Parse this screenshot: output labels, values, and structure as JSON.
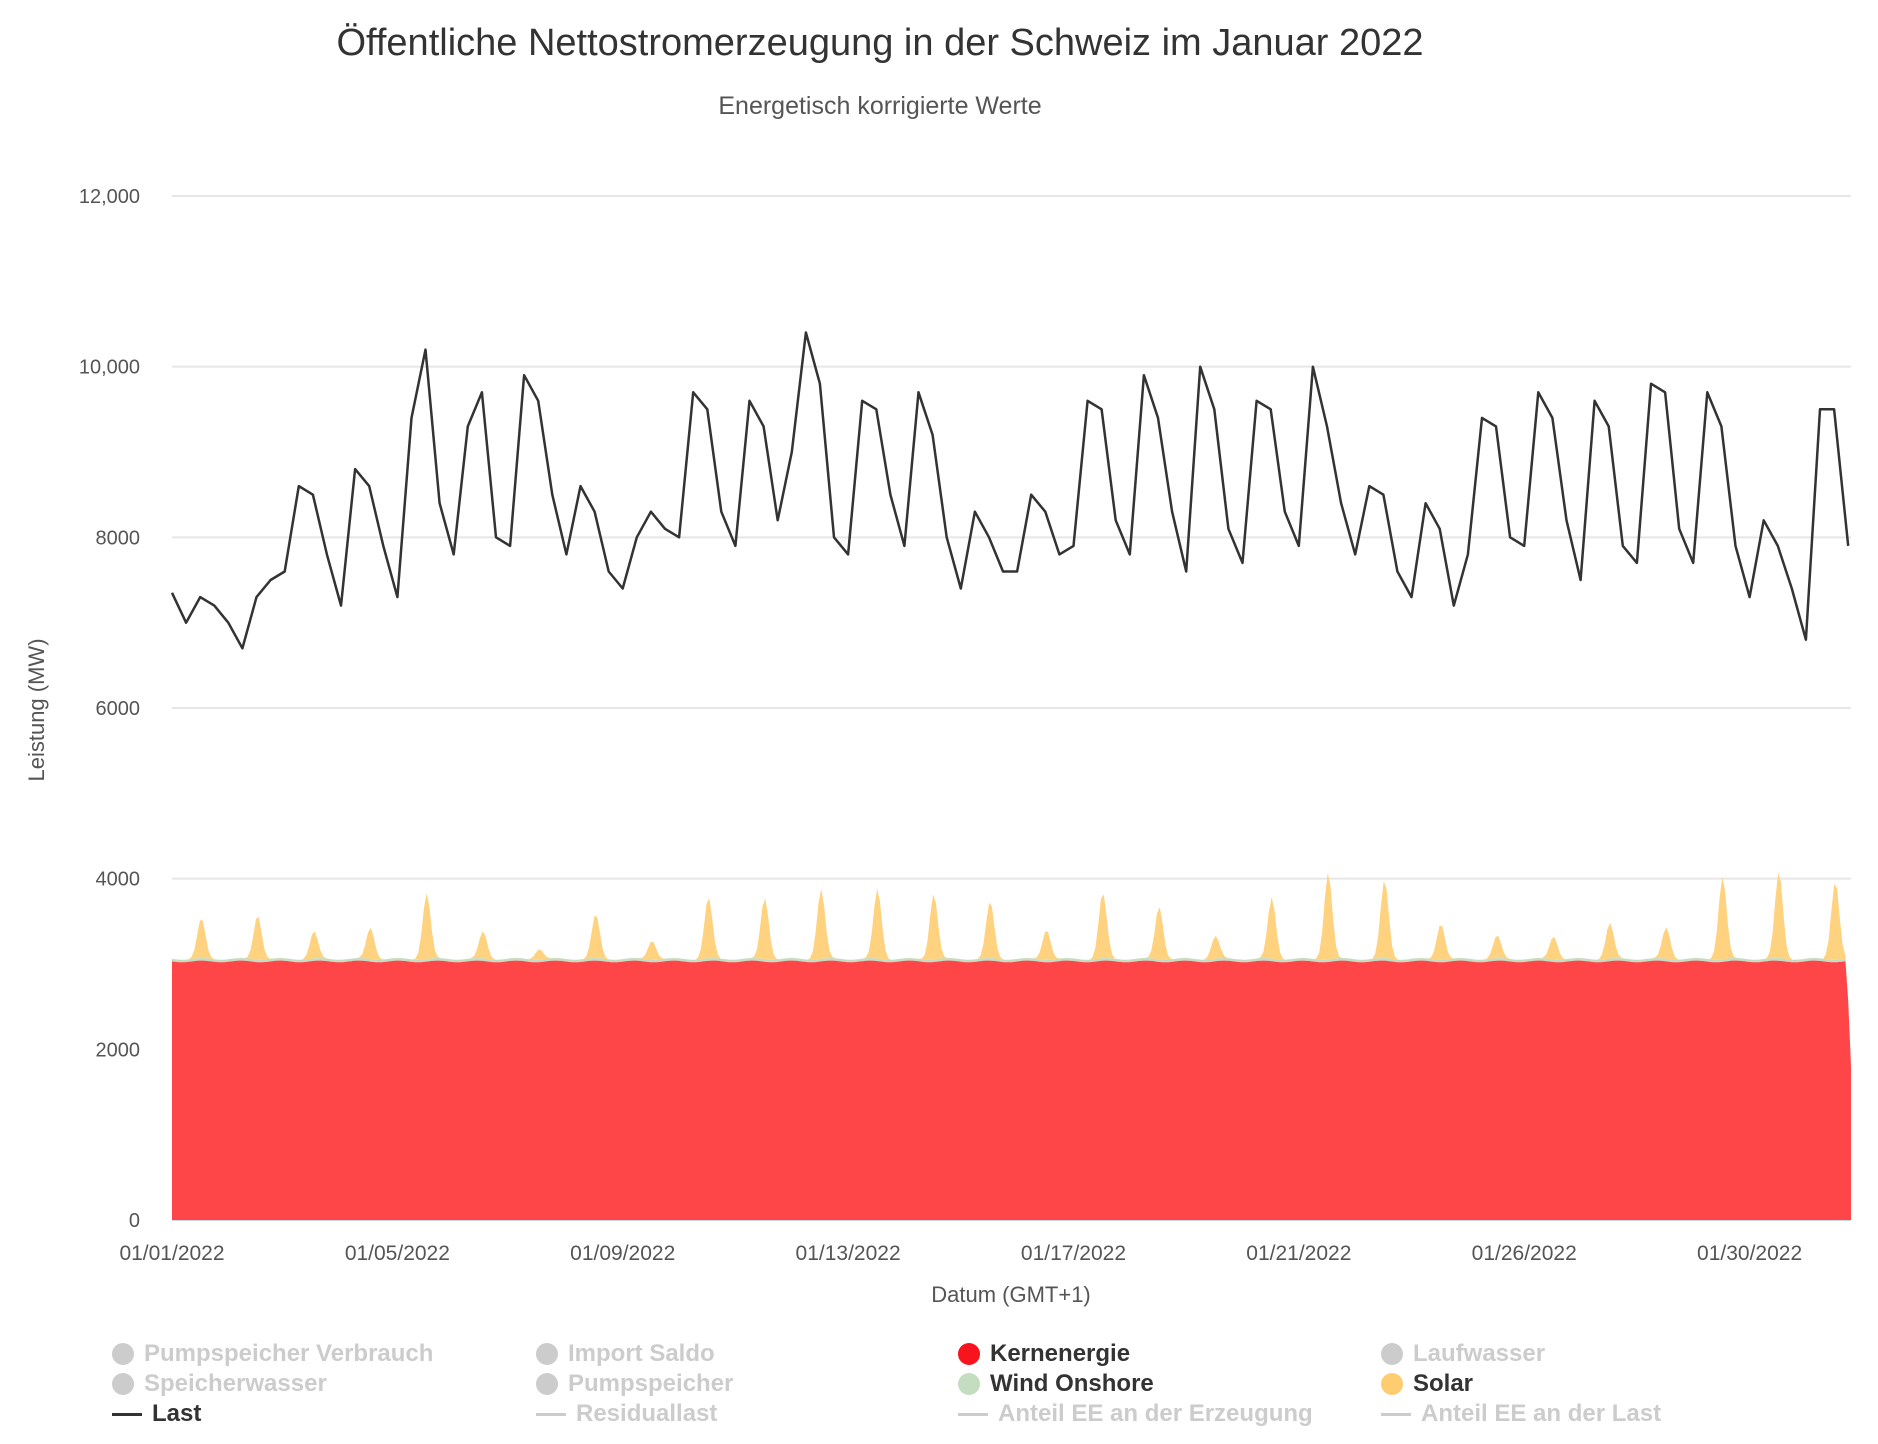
{
  "title": "Öffentliche Nettostromerzeugung in der Schweiz im Januar 2022",
  "subtitle": "Energetisch korrigierte Werte",
  "chart_data": {
    "type": "area",
    "title": "Öffentliche Nettostromerzeugung in der Schweiz im Januar 2022",
    "subtitle": "Energetisch korrigierte Werte",
    "xlabel": "Datum (GMT+1)",
    "ylabel": "Leistung (MW)",
    "ylim": [
      0,
      12000
    ],
    "y_ticks": [
      0,
      2000,
      4000,
      6000,
      8000,
      10000,
      12000
    ],
    "y_tick_labels": [
      "0",
      "2000",
      "4000",
      "6000",
      "8000",
      "10,000",
      "12,000"
    ],
    "x_tick_labels": [
      "01/01/2022",
      "01/05/2022",
      "01/09/2022",
      "01/13/2022",
      "01/17/2022",
      "01/21/2022",
      "01/26/2022",
      "01/30/2022"
    ],
    "grid": true,
    "legend_position": "bottom",
    "stacked": true,
    "series": [
      {
        "name": "Kernenergie",
        "kind": "area",
        "color": "#fe4548",
        "resolution_hours": 24,
        "values": [
          3030,
          3030,
          3030,
          3030,
          3030,
          3030,
          3030,
          3030,
          3030,
          3030,
          3030,
          3030,
          3030,
          3030,
          3030,
          3030,
          3030,
          3030,
          3030,
          3030,
          3030,
          3030,
          3030,
          3030,
          3030,
          3030,
          3030,
          3030,
          3030,
          3030
        ],
        "end_value": 1800
      },
      {
        "name": "Wind Onshore",
        "kind": "area",
        "color": "#c4dcc0",
        "resolution_hours": 24,
        "values": [
          30,
          30,
          30,
          30,
          30,
          30,
          30,
          30,
          30,
          30,
          30,
          30,
          30,
          30,
          30,
          30,
          30,
          30,
          30,
          30,
          30,
          30,
          30,
          30,
          30,
          30,
          30,
          30,
          30,
          30
        ]
      },
      {
        "name": "Solar",
        "kind": "area",
        "color": "#ffd27f",
        "description_of_values": "daily midday peak",
        "values": [
          470,
          520,
          320,
          370,
          770,
          320,
          120,
          520,
          220,
          720,
          720,
          820,
          820,
          770,
          670,
          350,
          770,
          620,
          270,
          720,
          1020,
          920,
          420,
          270,
          270,
          420,
          370,
          970,
          1020,
          920
        ]
      },
      {
        "name": "Last",
        "kind": "line",
        "color": "#333333",
        "resolution_hours": 6,
        "values": [
          7350,
          7000,
          7300,
          7200,
          7000,
          6700,
          7300,
          7500,
          7600,
          8600,
          8500,
          7800,
          7200,
          8800,
          8600,
          7900,
          7300,
          9400,
          10200,
          8400,
          7800,
          9300,
          9700,
          8000,
          7900,
          9900,
          9600,
          8500,
          7800,
          8600,
          8300,
          7600,
          7400,
          8000,
          8300,
          8100,
          8000,
          9700,
          9500,
          8300,
          7900,
          9600,
          9300,
          8200,
          9000,
          10400,
          9800,
          8000,
          7800,
          9600,
          9500,
          8500,
          7900,
          9700,
          9200,
          8000,
          7400,
          8300,
          8000,
          7600,
          7600,
          8500,
          8300,
          7800,
          7900,
          9600,
          9500,
          8200,
          7800,
          9900,
          9400,
          8300,
          7600,
          10000,
          9500,
          8100,
          7700,
          9600,
          9500,
          8300,
          7900,
          10000,
          9300,
          8400,
          7800,
          8600,
          8500,
          7600,
          7300,
          8400,
          8100,
          7200,
          7800,
          9400,
          9300,
          8000,
          7900,
          9700,
          9400,
          8200,
          7500,
          9600,
          9300,
          7900,
          7700,
          9800,
          9700,
          8100,
          7700,
          9700,
          9300,
          7900,
          7300,
          8200,
          7900,
          7400,
          6800,
          9500,
          9500,
          7900
        ]
      }
    ]
  },
  "legend": [
    {
      "label": "Pumpspeicher Verbrauch",
      "marker": "dot",
      "color": "#cccccc",
      "active": false
    },
    {
      "label": "Import Saldo",
      "marker": "dot",
      "color": "#cccccc",
      "active": false
    },
    {
      "label": "Kernenergie",
      "marker": "dot",
      "color": "#f7141c",
      "active": true
    },
    {
      "label": "Laufwasser",
      "marker": "dot",
      "color": "#cccccc",
      "active": false
    },
    {
      "label": "Speicherwasser",
      "marker": "dot",
      "color": "#cccccc",
      "active": false
    },
    {
      "label": "Pumpspeicher",
      "marker": "dot",
      "color": "#cccccc",
      "active": false
    },
    {
      "label": "Wind Onshore",
      "marker": "dot",
      "color": "#c4dcc0",
      "active": true
    },
    {
      "label": "Solar",
      "marker": "dot",
      "color": "#ffcd70",
      "active": true
    },
    {
      "label": "Last",
      "marker": "line",
      "color": "#333333",
      "active": true
    },
    {
      "label": "Residuallast",
      "marker": "line",
      "color": "#cccccc",
      "active": false
    },
    {
      "label": "Anteil EE an der Erzeugung",
      "marker": "line",
      "color": "#cccccc",
      "active": false
    },
    {
      "label": "Anteil EE an der Last",
      "marker": "line",
      "color": "#cccccc",
      "active": false
    }
  ]
}
